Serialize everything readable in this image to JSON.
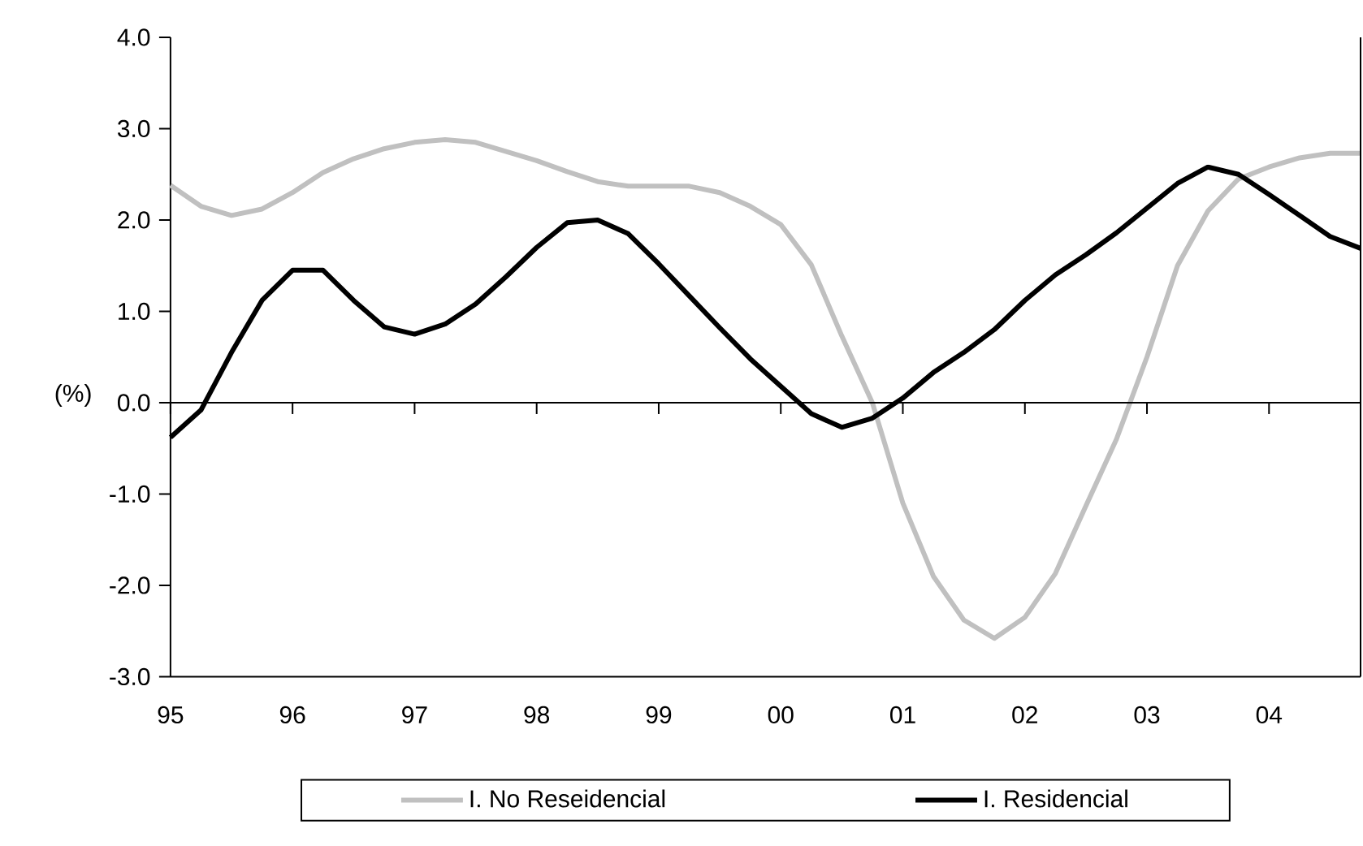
{
  "chart_data": {
    "type": "line",
    "ylabel": "(%)",
    "x": [
      1995,
      1995.25,
      1995.5,
      1995.75,
      1996,
      1996.25,
      1996.5,
      1996.75,
      1997,
      1997.25,
      1997.5,
      1997.75,
      1998,
      1998.25,
      1998.5,
      1998.75,
      1999,
      1999.25,
      1999.5,
      1999.75,
      2000,
      2000.25,
      2000.5,
      2000.75,
      2001,
      2001.25,
      2001.5,
      2001.75,
      2002,
      2002.25,
      2002.5,
      2002.75,
      2003,
      2003.25,
      2003.5,
      2003.75,
      2004,
      2004.25,
      2004.5,
      2004.75
    ],
    "series": [
      {
        "name": "I. No Reseidencial",
        "color": "#c0c0c0",
        "values": [
          2.38,
          2.15,
          2.05,
          2.12,
          2.3,
          2.52,
          2.67,
          2.78,
          2.85,
          2.88,
          2.85,
          2.75,
          2.65,
          2.53,
          2.42,
          2.37,
          2.37,
          2.37,
          2.3,
          2.15,
          1.95,
          1.51,
          0.73,
          0.0,
          -1.1,
          -1.9,
          -2.38,
          -2.58,
          -2.35,
          -1.87,
          -1.13,
          -0.4,
          0.5,
          1.5,
          2.1,
          2.45,
          2.58,
          2.68,
          2.73,
          2.73
        ]
      },
      {
        "name": "I. Residencial",
        "color": "#000000",
        "values": [
          -0.38,
          -0.08,
          0.55,
          1.12,
          1.45,
          1.45,
          1.12,
          0.83,
          0.75,
          0.86,
          1.08,
          1.38,
          1.7,
          1.97,
          2.0,
          1.85,
          1.52,
          1.17,
          0.82,
          0.48,
          0.18,
          -0.12,
          -0.27,
          -0.17,
          0.05,
          0.33,
          0.55,
          0.8,
          1.12,
          1.4,
          1.62,
          1.86,
          2.13,
          2.4,
          2.58,
          2.5,
          2.28,
          2.05,
          1.82,
          1.69
        ]
      }
    ],
    "xlim": [
      1995,
      2004.75
    ],
    "ylim": [
      -3,
      4
    ],
    "xticks": [
      {
        "value": 1995,
        "label": "95"
      },
      {
        "value": 1996,
        "label": "96"
      },
      {
        "value": 1997,
        "label": "97"
      },
      {
        "value": 1998,
        "label": "98"
      },
      {
        "value": 1999,
        "label": "99"
      },
      {
        "value": 2000,
        "label": "00"
      },
      {
        "value": 2001,
        "label": "01"
      },
      {
        "value": 2002,
        "label": "02"
      },
      {
        "value": 2003,
        "label": "03"
      },
      {
        "value": 2004,
        "label": "04"
      }
    ],
    "yticks": [
      {
        "value": -3,
        "label": "-3.0"
      },
      {
        "value": -2,
        "label": "-2.0"
      },
      {
        "value": -1,
        "label": "-1.0"
      },
      {
        "value": 0,
        "label": "0.0"
      },
      {
        "value": 1,
        "label": "1.0"
      },
      {
        "value": 2,
        "label": "2.0"
      },
      {
        "value": 3,
        "label": "3.0"
      },
      {
        "value": 4,
        "label": "4.0"
      }
    ],
    "legend": "bottom"
  }
}
